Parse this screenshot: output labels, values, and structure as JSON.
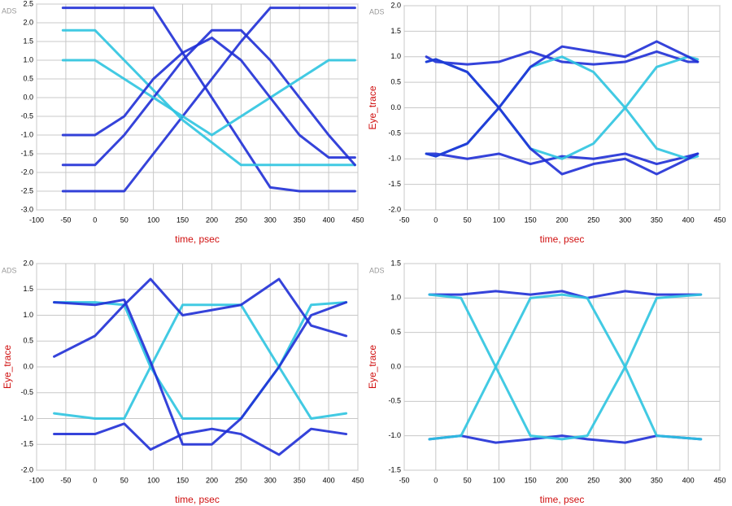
{
  "chart_data": [
    {
      "type": "line",
      "watermark": "ADS",
      "xlabel": "time, psec",
      "xlim": [
        -100,
        450
      ],
      "ylim": [
        -3,
        2.5
      ],
      "xticks": [
        -100,
        -50,
        0,
        50,
        100,
        150,
        200,
        250,
        300,
        350,
        400,
        450
      ],
      "yticks": [
        2.5,
        {
          "value": 2,
          "label": "2.0"
        },
        1.5,
        {
          "value": 1,
          "label": "1.0"
        },
        0.5,
        {
          "value": 0,
          "label": "0.0"
        },
        -0.5,
        {
          "value": -1,
          "label": "-1.0"
        },
        -1.5,
        {
          "value": -2,
          "label": "-2.0"
        },
        -2.5,
        {
          "value": -3,
          "label": "-3.0"
        }
      ],
      "grid": true,
      "x": [
        -55,
        0,
        50,
        100,
        150,
        200,
        250,
        300,
        350,
        400,
        445
      ],
      "series": [
        {
          "color": "#1f2fd6",
          "values": [
            2.4,
            2.4,
            2.4,
            2.4,
            1.2,
            0.0,
            -1.2,
            -2.4,
            -2.5,
            -2.5,
            -2.5
          ]
        },
        {
          "color": "#1f2fd6",
          "values": [
            -2.5,
            -2.5,
            -2.5,
            -1.5,
            -0.5,
            0.5,
            1.5,
            2.4,
            2.4,
            2.4,
            2.4
          ]
        },
        {
          "color": "#2ec4e0",
          "values": [
            1.8,
            1.8,
            1.0,
            0.2,
            -0.6,
            -1.2,
            -1.8,
            -1.8,
            -1.8,
            -1.8,
            -1.8
          ]
        },
        {
          "color": "#1f2fd6",
          "values": [
            -1.8,
            -1.8,
            -1.0,
            0.0,
            1.0,
            1.8,
            1.8,
            1.0,
            0.0,
            -1.0,
            -1.8
          ]
        },
        {
          "color": "#2ec4e0",
          "values": [
            1.0,
            1.0,
            0.5,
            0.0,
            -0.5,
            -1.0,
            -0.5,
            0.0,
            0.5,
            1.0,
            1.0
          ]
        },
        {
          "color": "#1f2fd6",
          "values": [
            -1.0,
            -1.0,
            -0.5,
            0.5,
            1.2,
            1.6,
            1.0,
            0.0,
            -1.0,
            -1.6,
            -1.6
          ]
        }
      ]
    },
    {
      "type": "line",
      "watermark": "ADS",
      "xlabel": "time, psec",
      "ylabel": "Eye_trace",
      "xlim": [
        -50,
        450
      ],
      "ylim": [
        -2,
        2
      ],
      "xticks": [
        -50,
        0,
        50,
        100,
        150,
        200,
        250,
        300,
        350,
        400,
        450
      ],
      "yticks": [
        {
          "value": 2,
          "label": "2.0"
        },
        1.5,
        {
          "value": 1,
          "label": "1.0"
        },
        0.5,
        {
          "value": 0,
          "label": "0.0"
        },
        -0.5,
        {
          "value": -1,
          "label": "-1.0"
        },
        -1.5,
        {
          "value": -2,
          "label": "-2.0"
        }
      ],
      "grid": true,
      "x": [
        -15,
        0,
        50,
        100,
        150,
        200,
        250,
        300,
        350,
        400,
        415
      ],
      "series": [
        {
          "color": "#1f2fd6",
          "values": [
            1.0,
            0.9,
            0.85,
            0.9,
            1.1,
            0.9,
            0.85,
            0.9,
            1.1,
            0.9,
            0.9
          ]
        },
        {
          "color": "#1f2fd6",
          "values": [
            -0.9,
            -0.9,
            -1.0,
            -0.9,
            -1.1,
            -0.95,
            -1.0,
            -0.9,
            -1.1,
            -0.95,
            -0.9
          ]
        },
        {
          "color": "#2ec4e0",
          "values": [
            -0.9,
            -0.95,
            -0.7,
            0.0,
            0.8,
            1.0,
            0.7,
            0.0,
            -0.8,
            -1.0,
            -0.95
          ]
        },
        {
          "color": "#2ec4e0",
          "values": [
            0.9,
            0.95,
            0.7,
            0.0,
            -0.8,
            -1.0,
            -0.7,
            0.0,
            0.8,
            1.0,
            0.95
          ]
        },
        {
          "color": "#1f2fd6",
          "values": [
            -0.9,
            -0.95,
            -0.7,
            0.0,
            0.8,
            1.2,
            1.1,
            1.0,
            1.3,
            1.0,
            0.9
          ]
        },
        {
          "color": "#1f2fd6",
          "values": [
            0.9,
            0.95,
            0.7,
            0.0,
            -0.8,
            -1.3,
            -1.1,
            -1.0,
            -1.3,
            -1.0,
            -0.9
          ]
        }
      ]
    },
    {
      "type": "line",
      "watermark": "ADS",
      "xlabel": "time, psec",
      "ylabel": "Eye_trace",
      "xlim": [
        -100,
        450
      ],
      "ylim": [
        -2,
        2
      ],
      "xticks": [
        -100,
        -50,
        0,
        50,
        100,
        150,
        200,
        250,
        300,
        350,
        400,
        450
      ],
      "yticks": [
        {
          "value": 2,
          "label": "2.0"
        },
        1.5,
        {
          "value": 1,
          "label": "1.0"
        },
        0.5,
        {
          "value": 0,
          "label": "0.0"
        },
        -0.5,
        {
          "value": -1,
          "label": "-1.0"
        },
        -1.5,
        {
          "value": -2,
          "label": "-2.0"
        }
      ],
      "grid": true,
      "x": [
        -70,
        0,
        50,
        95,
        150,
        200,
        250,
        315,
        370,
        430
      ],
      "series": [
        {
          "color": "#2ec4e0",
          "values": [
            1.25,
            1.25,
            1.2,
            0.0,
            -1.0,
            -1.0,
            -1.0,
            0.0,
            1.2,
            1.25
          ]
        },
        {
          "color": "#2ec4e0",
          "values": [
            -0.9,
            -1.0,
            -1.0,
            0.0,
            1.2,
            1.2,
            1.2,
            0.0,
            -1.0,
            -0.9
          ]
        },
        {
          "color": "#1f2fd6",
          "values": [
            0.2,
            0.6,
            1.2,
            1.7,
            1.0,
            1.1,
            1.2,
            1.7,
            0.8,
            0.6
          ]
        },
        {
          "color": "#1f2fd6",
          "values": [
            -1.3,
            -1.3,
            -1.1,
            -1.6,
            -1.3,
            -1.2,
            -1.3,
            -1.7,
            -1.2,
            -1.3
          ]
        },
        {
          "color": "#1f2fd6",
          "values": [
            1.25,
            1.2,
            1.3,
            0.1,
            -1.5,
            -1.5,
            -1.0,
            0.0,
            1.0,
            1.25
          ]
        }
      ]
    },
    {
      "type": "line",
      "watermark": "ADS",
      "xlabel": "time, psec",
      "ylabel": "Eye_trace",
      "xlim": [
        -50,
        450
      ],
      "ylim": [
        -1.5,
        1.5
      ],
      "xticks": [
        -50,
        0,
        50,
        100,
        150,
        200,
        250,
        300,
        350,
        400,
        450
      ],
      "yticks": [
        1.5,
        {
          "value": 1,
          "label": "1.0"
        },
        0.5,
        {
          "value": 0,
          "label": "0.0"
        },
        -0.5,
        {
          "value": -1,
          "label": "-1.0"
        },
        -1.5
      ],
      "grid": true,
      "x": [
        -10,
        40,
        95,
        150,
        200,
        240,
        300,
        350,
        420
      ],
      "series": [
        {
          "color": "#1f2fd6",
          "values": [
            1.05,
            1.05,
            1.1,
            1.05,
            1.1,
            1.0,
            1.1,
            1.05,
            1.05
          ]
        },
        {
          "color": "#1f2fd6",
          "values": [
            -1.05,
            -1.0,
            -1.1,
            -1.05,
            -1.0,
            -1.05,
            -1.1,
            -1.0,
            -1.05
          ]
        },
        {
          "color": "#2ec4e0",
          "values": [
            -1.05,
            -1.0,
            0.0,
            1.0,
            1.05,
            1.0,
            0.0,
            -1.0,
            -1.05
          ]
        },
        {
          "color": "#2ec4e0",
          "values": [
            1.05,
            1.0,
            0.0,
            -1.0,
            -1.05,
            -1.0,
            0.0,
            1.0,
            1.05
          ]
        }
      ]
    }
  ]
}
